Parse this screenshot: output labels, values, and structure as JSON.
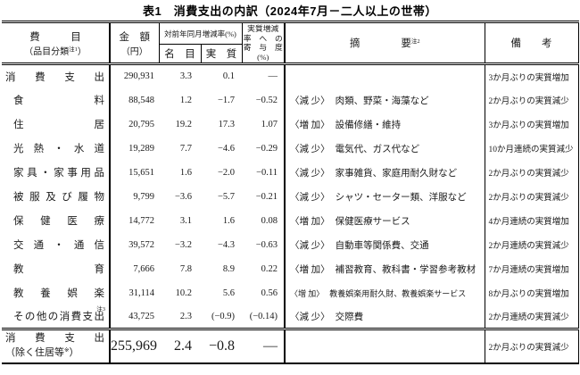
{
  "title": "表1　消費支出の内訳（2024年7月－二人以上の世帯）",
  "header": {
    "item_label": "費　　　目",
    "item_sub_pre": "（品目分類",
    "item_sub_note": "注1",
    "item_sub_post": "）",
    "amount_label": "金　額",
    "amount_unit": "（円）",
    "yoy_label": "対前年同月増減率(%)",
    "nominal_label": "名　目",
    "real_label": "実　質",
    "contribution_lines": [
      "実質増減",
      "率　へ　の",
      "寄　与　度",
      "(%)"
    ],
    "summary_label": "摘　　　　要",
    "summary_note": "注2",
    "remarks_label": "備　　考"
  },
  "rows": [
    {
      "item": "消費支出",
      "amount": "290,931",
      "nominal": "3.3",
      "real": "0.1",
      "contribution": "―",
      "summary_marker": "",
      "summary_text": "",
      "remarks": "3か月ぶりの実質増加"
    },
    {
      "item": "食料",
      "amount": "88,548",
      "nominal": "1.2",
      "real": "−1.7",
      "contribution": "−0.52",
      "summary_marker": "〈減 少〉",
      "summary_text": "肉類、野菜・海藻など",
      "remarks": "2か月ぶりの実質減少"
    },
    {
      "item": "住居",
      "amount": "20,795",
      "nominal": "19.2",
      "real": "17.3",
      "contribution": "1.07",
      "summary_marker": "〈増 加〉",
      "summary_text": "設備修繕・維持",
      "remarks": "3か月ぶりの実質増加"
    },
    {
      "item": "光熱・水道",
      "amount": "19,289",
      "nominal": "7.7",
      "real": "−4.6",
      "contribution": "−0.29",
      "summary_marker": "〈減 少〉",
      "summary_text": "電気代、ガス代など",
      "remarks": "10か月連続の実質減少"
    },
    {
      "item": "家具・家事用品",
      "amount": "15,651",
      "nominal": "1.6",
      "real": "−2.0",
      "contribution": "−0.11",
      "summary_marker": "〈減 少〉",
      "summary_text": "家事雑貨、家庭用耐久財など",
      "remarks": "2か月ぶりの実質減少"
    },
    {
      "item": "被服及び履物",
      "amount": "9,799",
      "nominal": "−3.6",
      "real": "−5.7",
      "contribution": "−0.21",
      "summary_marker": "〈減 少〉",
      "summary_text": "シャツ・セーター類、洋服など",
      "remarks": "2か月ぶりの実質減少"
    },
    {
      "item": "保健医療",
      "amount": "14,772",
      "nominal": "3.1",
      "real": "1.6",
      "contribution": "0.08",
      "summary_marker": "〈増 加〉",
      "summary_text": "保健医療サービス",
      "remarks": "4か月連続の実質増加"
    },
    {
      "item": "交通・通信",
      "amount": "39,572",
      "nominal": "−3.2",
      "real": "−4.3",
      "contribution": "−0.63",
      "summary_marker": "〈減 少〉",
      "summary_text": "自動車等関係費、交通",
      "remarks": "2か月連続の実質減少"
    },
    {
      "item": "教育",
      "amount": "7,666",
      "nominal": "7.8",
      "real": "8.9",
      "contribution": "0.22",
      "summary_marker": "〈増 加〉",
      "summary_text": "補習教育、教科書・学習参考教材",
      "remarks": "7か月連続の実質増加"
    },
    {
      "item": "教養娯楽",
      "amount": "31,114",
      "nominal": "10.2",
      "real": "5.6",
      "contribution": "0.56",
      "summary_marker": "〈増 加〉",
      "summary_text": "教養娯楽用耐久財、教養娯楽サービス",
      "remarks": "8か月ぶりの実質増加"
    },
    {
      "item": "その他の消費支出",
      "note": "注3",
      "amount": "43,725",
      "nominal": "2.3",
      "real": "(−0.9)",
      "contribution": "(−0.14)",
      "summary_marker": "〈減 少〉",
      "summary_text": "交際費",
      "remarks": "2か月連続の実質減少"
    }
  ],
  "footer": {
    "item_line1": "消費支出",
    "item_line2_pre": "（除く住居等",
    "item_note": "※",
    "item_line2_post": "）",
    "amount": "255,969",
    "nominal": "2.4",
    "real": "−0.8",
    "contribution": "―",
    "remarks": "2か月ぶりの実質減少"
  }
}
